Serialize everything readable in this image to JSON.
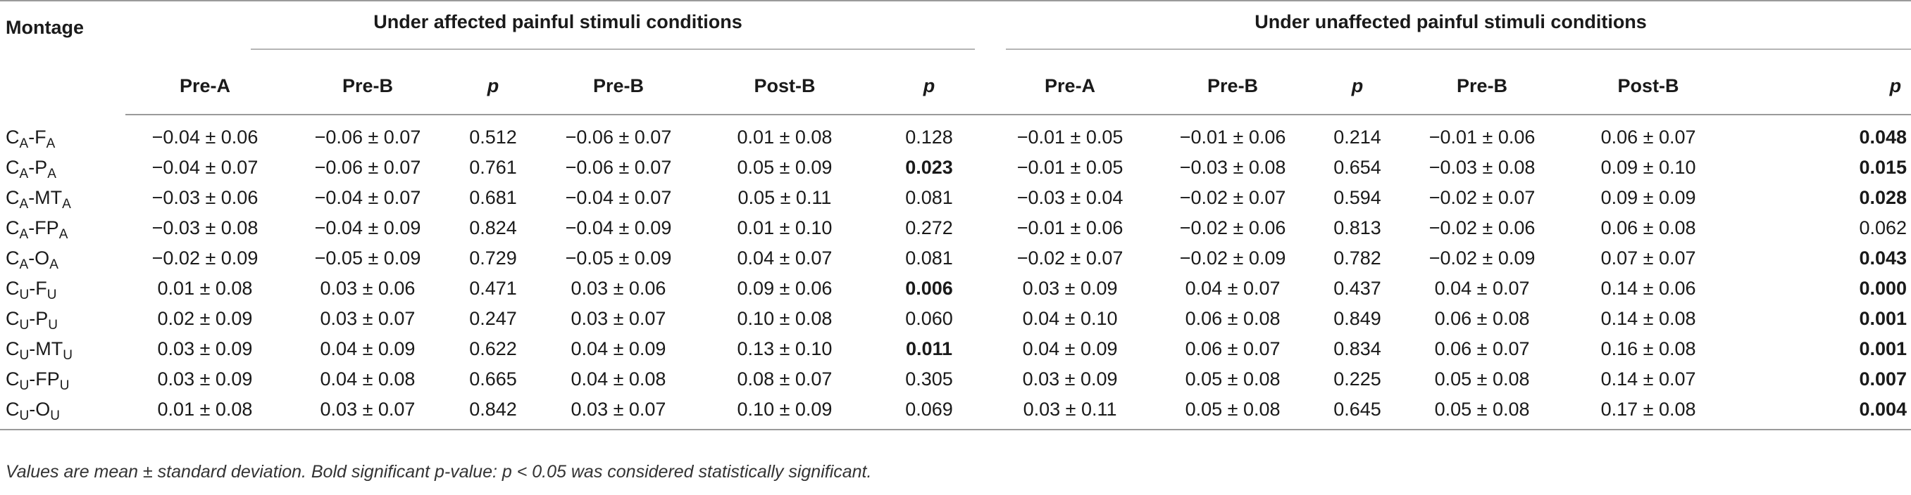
{
  "header": {
    "montage_label": "Montage",
    "group_affected": "Under affected painful stimuli conditions",
    "group_unaffected": "Under unaffected painful stimuli conditions",
    "columns": [
      "Pre-A",
      "Pre-B",
      "p",
      "Pre-B",
      "Post-B",
      "p",
      "Pre-A",
      "Pre-B",
      "p",
      "Pre-B",
      "Post-B",
      "p"
    ]
  },
  "rows": [
    {
      "m_main": "C",
      "m_sub1": "A",
      "m_mid": "-F",
      "m_sub2": "A",
      "v": [
        "−0.04 ± 0.06",
        "−0.06 ± 0.07",
        "0.512",
        "−0.06 ± 0.07",
        "0.01 ± 0.08",
        "0.128",
        "−0.01 ± 0.05",
        "−0.01 ± 0.06",
        "0.214",
        "−0.01 ± 0.06",
        "0.06 ± 0.07",
        "0.048"
      ],
      "bold": [
        false,
        false,
        false,
        false,
        false,
        false,
        false,
        false,
        false,
        false,
        false,
        true
      ]
    },
    {
      "m_main": "C",
      "m_sub1": "A",
      "m_mid": "-P",
      "m_sub2": "A",
      "v": [
        "−0.04 ± 0.07",
        "−0.06 ± 0.07",
        "0.761",
        "−0.06 ± 0.07",
        "0.05 ± 0.09",
        "0.023",
        "−0.01 ± 0.05",
        "−0.03 ± 0.08",
        "0.654",
        "−0.03 ± 0.08",
        "0.09 ± 0.10",
        "0.015"
      ],
      "bold": [
        false,
        false,
        false,
        false,
        false,
        true,
        false,
        false,
        false,
        false,
        false,
        true
      ]
    },
    {
      "m_main": "C",
      "m_sub1": "A",
      "m_mid": "-MT",
      "m_sub2": "A",
      "v": [
        "−0.03 ± 0.06",
        "−0.04 ± 0.07",
        "0.681",
        "−0.04 ± 0.07",
        "0.05 ± 0.11",
        "0.081",
        "−0.03 ± 0.04",
        "−0.02 ± 0.07",
        "0.594",
        "−0.02 ± 0.07",
        "0.09 ± 0.09",
        "0.028"
      ],
      "bold": [
        false,
        false,
        false,
        false,
        false,
        false,
        false,
        false,
        false,
        false,
        false,
        true
      ]
    },
    {
      "m_main": "C",
      "m_sub1": "A",
      "m_mid": "-FP",
      "m_sub2": "A",
      "v": [
        "−0.03 ± 0.08",
        "−0.04 ± 0.09",
        "0.824",
        "−0.04 ± 0.09",
        "0.01 ± 0.10",
        "0.272",
        "−0.01 ± 0.06",
        "−0.02 ± 0.06",
        "0.813",
        "−0.02 ± 0.06",
        "0.06 ± 0.08",
        "0.062"
      ],
      "bold": [
        false,
        false,
        false,
        false,
        false,
        false,
        false,
        false,
        false,
        false,
        false,
        false
      ]
    },
    {
      "m_main": "C",
      "m_sub1": "A",
      "m_mid": "-O",
      "m_sub2": "A",
      "v": [
        "−0.02 ± 0.09",
        "−0.05 ± 0.09",
        "0.729",
        "−0.05 ± 0.09",
        "0.04 ± 0.07",
        "0.081",
        "−0.02 ± 0.07",
        "−0.02 ± 0.09",
        "0.782",
        "−0.02 ± 0.09",
        "0.07 ± 0.07",
        "0.043"
      ],
      "bold": [
        false,
        false,
        false,
        false,
        false,
        false,
        false,
        false,
        false,
        false,
        false,
        true
      ]
    },
    {
      "m_main": "C",
      "m_sub1": "U",
      "m_mid": "-F",
      "m_sub2": "U",
      "v": [
        "0.01 ± 0.08",
        "0.03 ± 0.06",
        "0.471",
        "0.03 ± 0.06",
        "0.09 ± 0.06",
        "0.006",
        "0.03 ± 0.09",
        "0.04 ± 0.07",
        "0.437",
        "0.04 ± 0.07",
        "0.14 ± 0.06",
        "0.000"
      ],
      "bold": [
        false,
        false,
        false,
        false,
        false,
        true,
        false,
        false,
        false,
        false,
        false,
        true
      ]
    },
    {
      "m_main": "C",
      "m_sub1": "U",
      "m_mid": "-P",
      "m_sub2": "U",
      "v": [
        "0.02 ± 0.09",
        "0.03 ± 0.07",
        "0.247",
        "0.03 ± 0.07",
        "0.10 ± 0.08",
        "0.060",
        "0.04 ± 0.10",
        "0.06 ± 0.08",
        "0.849",
        "0.06 ± 0.08",
        "0.14 ± 0.08",
        "0.001"
      ],
      "bold": [
        false,
        false,
        false,
        false,
        false,
        false,
        false,
        false,
        false,
        false,
        false,
        true
      ]
    },
    {
      "m_main": "C",
      "m_sub1": "U",
      "m_mid": "-MT",
      "m_sub2": "U",
      "v": [
        "0.03 ± 0.09",
        "0.04 ± 0.09",
        "0.622",
        "0.04 ± 0.09",
        "0.13 ± 0.10",
        "0.011",
        "0.04 ± 0.09",
        "0.06 ± 0.07",
        "0.834",
        "0.06 ± 0.07",
        "0.16 ± 0.08",
        "0.001"
      ],
      "bold": [
        false,
        false,
        false,
        false,
        false,
        true,
        false,
        false,
        false,
        false,
        false,
        true
      ]
    },
    {
      "m_main": "C",
      "m_sub1": "U",
      "m_mid": "-FP",
      "m_sub2": "U",
      "v": [
        "0.03 ± 0.09",
        "0.04 ± 0.08",
        "0.665",
        "0.04 ± 0.08",
        "0.08 ± 0.07",
        "0.305",
        "0.03 ± 0.09",
        "0.05 ± 0.08",
        "0.225",
        "0.05 ± 0.08",
        "0.14 ± 0.07",
        "0.007"
      ],
      "bold": [
        false,
        false,
        false,
        false,
        false,
        false,
        false,
        false,
        false,
        false,
        false,
        true
      ]
    },
    {
      "m_main": "C",
      "m_sub1": "U",
      "m_mid": "-O",
      "m_sub2": "U",
      "v": [
        "0.01 ± 0.08",
        "0.03 ± 0.07",
        "0.842",
        "0.03 ± 0.07",
        "0.10 ± 0.09",
        "0.069",
        "0.03 ± 0.11",
        "0.05 ± 0.08",
        "0.645",
        "0.05 ± 0.08",
        "0.17 ± 0.08",
        "0.004"
      ],
      "bold": [
        false,
        false,
        false,
        false,
        false,
        false,
        false,
        false,
        false,
        false,
        false,
        true
      ]
    }
  ],
  "footnote": "Values are mean ± standard deviation. Bold significant p-value: p < 0.05 was considered statistically significant."
}
